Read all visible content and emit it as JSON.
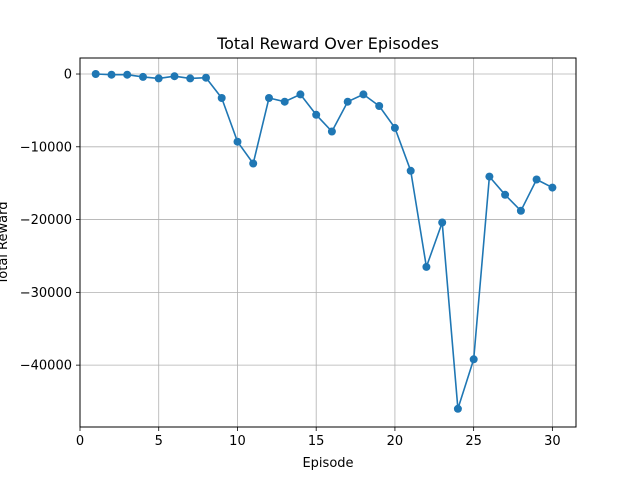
{
  "chart_data": {
    "type": "line",
    "title": "Total Reward Over Episodes",
    "xlabel": "Episode",
    "ylabel": "Total Reward",
    "xlim": [
      0,
      31.5
    ],
    "ylim": [
      -48500,
      2200
    ],
    "xticks": [
      0,
      5,
      10,
      15,
      20,
      25,
      30
    ],
    "yticks": [
      0,
      -10000,
      -20000,
      -30000,
      -40000
    ],
    "ytick_labels": [
      "0",
      "−10000",
      "−20000",
      "−30000",
      "−40000"
    ],
    "grid": true,
    "color": "#1f77b4",
    "markers": true,
    "x": [
      1,
      2,
      3,
      4,
      5,
      6,
      7,
      8,
      9,
      10,
      11,
      12,
      13,
      14,
      15,
      16,
      17,
      18,
      19,
      20,
      21,
      22,
      23,
      24,
      25,
      26,
      27,
      28,
      29,
      30
    ],
    "y": [
      0,
      -100,
      -100,
      -400,
      -600,
      -300,
      -600,
      -500,
      -3300,
      -9300,
      -12300,
      -3300,
      -3800,
      -2800,
      -5600,
      -7900,
      -3800,
      -2800,
      -4400,
      -7400,
      -13300,
      -26500,
      -20400,
      -46000,
      -39200,
      -14100,
      -16600,
      -18800,
      -14500,
      -15600
    ]
  }
}
